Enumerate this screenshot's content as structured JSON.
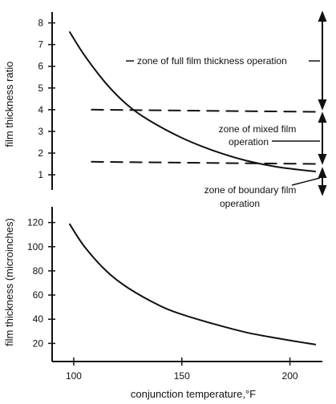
{
  "chart_data": [
    {
      "type": "line",
      "title": "",
      "xlabel": "",
      "ylabel": "film thickness ratio",
      "xlim": [
        90,
        215
      ],
      "ylim": [
        0.3,
        8.5
      ],
      "yticks": [
        1,
        2,
        3,
        4,
        5,
        6,
        7,
        8
      ],
      "grid": false,
      "series": [
        {
          "style": "solid",
          "x": [
            98,
            105,
            115,
            125,
            135,
            150,
            165,
            180,
            195,
            212
          ],
          "y": [
            7.6,
            6.5,
            5.2,
            4.2,
            3.5,
            2.7,
            2.1,
            1.65,
            1.35,
            1.15
          ]
        },
        {
          "style": "dashed",
          "x": [
            108,
            213
          ],
          "y": [
            4.0,
            3.9
          ]
        },
        {
          "style": "dashed",
          "x": [
            108,
            213
          ],
          "y": [
            1.6,
            1.5
          ]
        }
      ],
      "annotations": [
        {
          "text": "zone of full film thickness operation"
        },
        {
          "text": "zone of mixed film"
        },
        {
          "text": "operation"
        },
        {
          "text": "zone of boundary film"
        },
        {
          "text": "operation"
        }
      ]
    },
    {
      "type": "line",
      "title": "",
      "xlabel": "conjunction temperature,°F",
      "ylabel": "film thickness (microinches)",
      "xlim": [
        90,
        215
      ],
      "ylim": [
        5,
        133
      ],
      "xticks": [
        100,
        150,
        200
      ],
      "yticks": [
        20,
        40,
        60,
        80,
        100,
        120
      ],
      "grid": false,
      "series": [
        {
          "style": "solid",
          "x": [
            98,
            105,
            115,
            125,
            140,
            150,
            165,
            180,
            195,
            212
          ],
          "y": [
            119,
            100,
            80,
            66,
            51,
            44,
            36,
            29,
            24,
            19
          ]
        }
      ]
    }
  ]
}
